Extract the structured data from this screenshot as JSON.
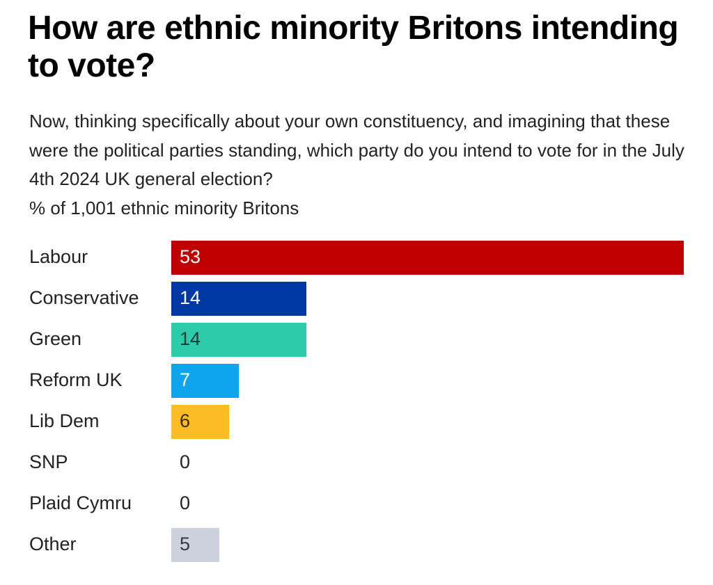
{
  "title": "How are ethnic minority Britons intending to vote?",
  "subtitle": {
    "question": "Now, thinking specifically about your own constituency, and imagining that these were the political parties standing, which party do you intend to vote for in the July 4th 2024 UK general election?",
    "base": "% of 1,001 ethnic minority Britons"
  },
  "chart_data": {
    "type": "bar",
    "orientation": "horizontal",
    "title": "How are ethnic minority Britons intending to vote?",
    "xlabel": "",
    "ylabel": "",
    "unit": "%",
    "xlim": [
      0,
      53
    ],
    "grid": false,
    "legend": "none",
    "categories": [
      "Labour",
      "Conservative",
      "Green",
      "Reform UK",
      "Lib Dem",
      "SNP",
      "Plaid Cymru",
      "Other"
    ],
    "values": [
      53,
      14,
      14,
      7,
      6,
      0,
      0,
      5
    ],
    "colors": [
      "#c00000",
      "#0039a6",
      "#2ecbaa",
      "#0ea5ee",
      "#fbbc26",
      "#ffffff",
      "#ffffff",
      "#cdd1dc"
    ],
    "label_colors": [
      "#ffffff",
      "#ffffff",
      "#1a3b33",
      "#ffffff",
      "#3a2a00",
      "#222222",
      "#222222",
      "#333a46"
    ]
  }
}
